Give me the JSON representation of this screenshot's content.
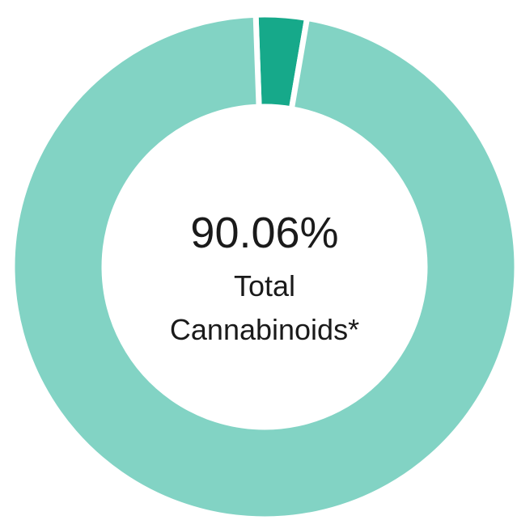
{
  "chart_data": {
    "type": "pie",
    "style": "donut",
    "categories": [
      "",
      ""
    ],
    "values": [
      3.25,
      96.75
    ],
    "colors": [
      "#16a98a",
      "#82d3c4"
    ],
    "separator_color": "#ffffff",
    "center_label": {
      "value": "90.06%",
      "line1": "Total",
      "line2": "Cannabinoids*"
    },
    "legend": "none"
  }
}
